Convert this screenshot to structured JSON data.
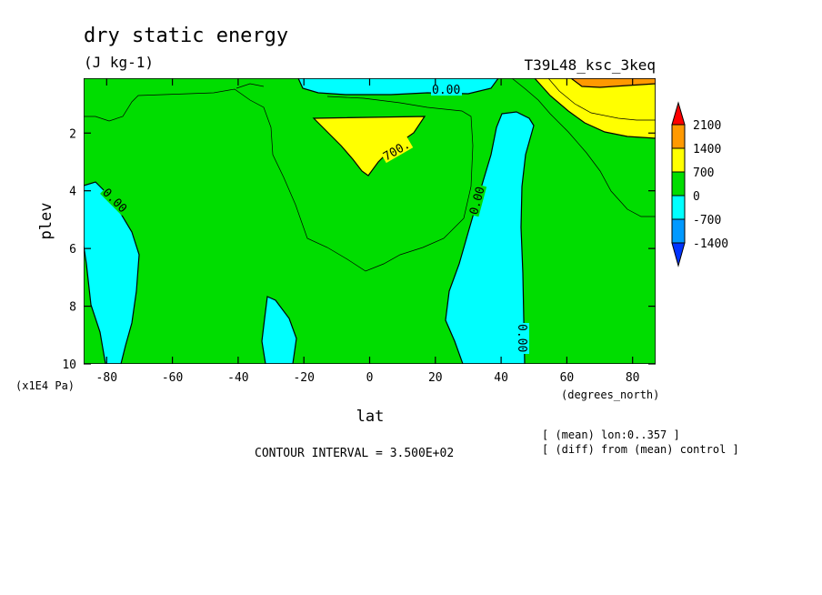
{
  "chart_data": {
    "type": "heatmap",
    "subtype": "filled-contour latitude-pressure cross section",
    "title": "dry static energy",
    "units": "(J kg-1)",
    "run_label": "T39L48_ksc_3keq",
    "xlabel": "lat",
    "x_units": "(degrees_north)",
    "ylabel": "plev",
    "y_units": "(x1E4 Pa)",
    "xlim": [
      -87,
      87
    ],
    "ylim": [
      0.1,
      10
    ],
    "y_inverted": true,
    "x_ticks": [
      "-80",
      "-60",
      "-40",
      "-20",
      "0",
      "20",
      "40",
      "60",
      "80"
    ],
    "y_ticks": [
      "2",
      "4",
      "6",
      "8",
      "10"
    ],
    "contour_interval_text": "CONTOUR INTERVAL = 3.500E+02",
    "notes": [
      "[ (mean) lon:0..357 ]",
      "[ (diff) from (mean) control ]"
    ],
    "contour_labels": [
      "0.00",
      "700.",
      "0.00",
      "0.00",
      "0.00",
      "0.00"
    ],
    "colorbar": {
      "levels": [
        "2100",
        "1400",
        "700",
        "0",
        "-700",
        "-1400"
      ],
      "colors": [
        "#ff0000",
        "#ff9900",
        "#ffff00",
        "#00dd00",
        "#00ffff",
        "#0099ff",
        "#0033ff"
      ]
    },
    "regions": [
      {
        "fill": "#00ffff",
        "level": "-700 to 0",
        "lat_range": [
          -87,
          -74
        ],
        "plev_range": [
          3.8,
          10
        ]
      },
      {
        "fill": "#00ffff",
        "level": "-700 to 0",
        "lat_range": [
          -33,
          -24
        ],
        "plev_range": [
          7.8,
          10
        ]
      },
      {
        "fill": "#00ffff",
        "level": "-700 to 0",
        "lat_range": [
          25,
          50
        ],
        "plev_range": [
          1.3,
          10
        ]
      },
      {
        "fill": "#00ffff",
        "level": "-700 to 0",
        "lat_range": [
          -20,
          20
        ],
        "plev_range": [
          0.1,
          0.6
        ]
      },
      {
        "fill": "#ffff00",
        "level": "700 to 1400",
        "lat_range": [
          -16,
          17
        ],
        "plev_range": [
          1.3,
          3.5
        ]
      },
      {
        "fill": "#ffff00",
        "level": "700 to 1400",
        "lat_range": [
          51,
          87
        ],
        "plev_range": [
          0.1,
          2.2
        ]
      },
      {
        "fill": "#ff9900",
        "level": "1400 to 2100",
        "lat_range": [
          63,
          87
        ],
        "plev_range": [
          0.1,
          0.4
        ]
      }
    ]
  }
}
